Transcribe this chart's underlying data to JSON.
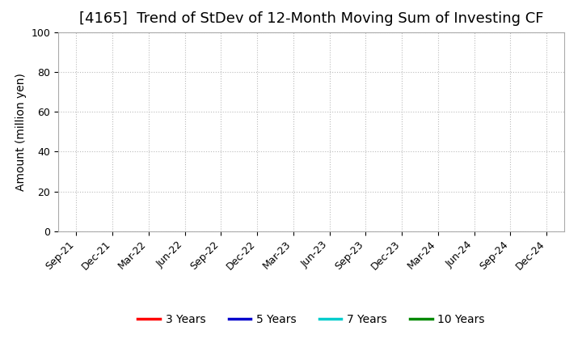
{
  "title": "[4165]  Trend of StDev of 12-Month Moving Sum of Investing CF",
  "ylabel": "Amount (million yen)",
  "ylim": [
    0,
    100
  ],
  "yticks": [
    0,
    20,
    40,
    60,
    80,
    100
  ],
  "x_labels": [
    "Sep-21",
    "Dec-21",
    "Mar-22",
    "Jun-22",
    "Sep-22",
    "Dec-22",
    "Mar-23",
    "Jun-23",
    "Sep-23",
    "Dec-23",
    "Mar-24",
    "Jun-24",
    "Sep-24",
    "Dec-24"
  ],
  "background_color": "#ffffff",
  "plot_bg_color": "#ffffff",
  "grid_color": "#bbbbbb",
  "legend_entries": [
    {
      "label": "3 Years",
      "color": "#ff0000"
    },
    {
      "label": "5 Years",
      "color": "#0000cc"
    },
    {
      "label": "7 Years",
      "color": "#00cccc"
    },
    {
      "label": "10 Years",
      "color": "#008800"
    }
  ],
  "title_fontsize": 13,
  "label_fontsize": 10,
  "tick_fontsize": 9,
  "legend_fontsize": 10
}
